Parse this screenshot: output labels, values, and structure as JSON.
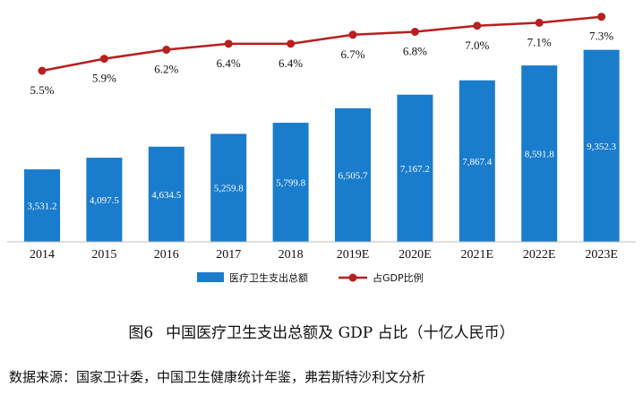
{
  "chart_data": {
    "type": "bar",
    "categories": [
      "2014",
      "2015",
      "2016",
      "2017",
      "2018",
      "2019E",
      "2020E",
      "2021E",
      "2022E",
      "2023E"
    ],
    "series": [
      {
        "name": "医疗卫生支出总额",
        "type": "bar",
        "values": [
          3531.2,
          4097.5,
          4634.5,
          5259.8,
          5799.8,
          6505.7,
          7167.2,
          7867.4,
          8591.8,
          9352.3
        ],
        "labels": [
          "3,531.2",
          "4,097.5",
          "4,634.5",
          "5,259.8",
          "5,799.8",
          "6,505.7",
          "7,167.2",
          "7,867.4",
          "8,591.8",
          "9,352.3"
        ],
        "color": "#1a7ccc"
      },
      {
        "name": "占GDP比例",
        "type": "line",
        "values": [
          5.5,
          5.9,
          6.2,
          6.4,
          6.4,
          6.7,
          6.8,
          7.0,
          7.1,
          7.3
        ],
        "labels": [
          "5.5%",
          "5.9%",
          "6.2%",
          "6.4%",
          "6.4%",
          "6.7%",
          "6.8%",
          "7.0%",
          "7.1%",
          "7.3%"
        ],
        "color": "#b81f1f"
      }
    ],
    "legend": "bottom",
    "grid": false
  },
  "caption": {
    "figure": "图6",
    "title": "中国医疗卫生支出总额及 GDP 占比（十亿人民币）"
  },
  "source": "数据来源：国家卫计委，中国卫生健康统计年鉴，弗若斯特沙利文分析"
}
